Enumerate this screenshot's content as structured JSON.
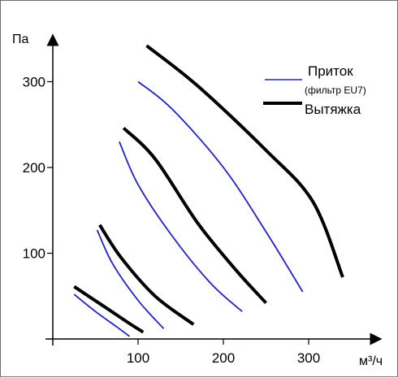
{
  "chart_data": {
    "type": "line",
    "title": "",
    "xlabel": "м³/ч",
    "ylabel": "Па",
    "xlim": [
      0,
      380
    ],
    "ylim": [
      0,
      380
    ],
    "x_ticks": [
      100,
      200,
      300
    ],
    "y_ticks": [
      100,
      200,
      300
    ],
    "grid": false,
    "legend": {
      "placement": "top-right",
      "entries": [
        {
          "name": "Приток",
          "note": "(фильтр EU7)",
          "color": "#1f1fd6"
        },
        {
          "name": "Вытяжка",
          "note": "",
          "color": "#000000"
        }
      ]
    },
    "series": [
      {
        "name": "Приток",
        "color": "#1f1fd6",
        "x": [
          25,
          50,
          75,
          90
        ],
        "y": [
          52,
          32,
          14,
          3
        ]
      },
      {
        "name": "Приток",
        "color": "#1f1fd6",
        "x": [
          52,
          70,
          100,
          130
        ],
        "y": [
          127,
          88,
          45,
          12
        ]
      },
      {
        "name": "Приток",
        "color": "#1f1fd6",
        "x": [
          78,
          100,
          140,
          185,
          222
        ],
        "y": [
          230,
          180,
          120,
          65,
          32
        ]
      },
      {
        "name": "Приток",
        "color": "#1f1fd6",
        "x": [
          100,
          140,
          200,
          250,
          293
        ],
        "y": [
          300,
          268,
          200,
          125,
          55
        ]
      },
      {
        "name": "Вытяжка",
        "color": "#000000",
        "x": [
          25,
          60,
          90,
          106
        ],
        "y": [
          61,
          38,
          18,
          8
        ]
      },
      {
        "name": "Вытяжка",
        "color": "#000000",
        "x": [
          55,
          80,
          120,
          165
        ],
        "y": [
          133,
          95,
          50,
          17
        ]
      },
      {
        "name": "Вытяжка",
        "color": "#000000",
        "x": [
          83,
          120,
          170,
          215,
          250
        ],
        "y": [
          246,
          210,
          135,
          80,
          42
        ]
      },
      {
        "name": "Вытяжка",
        "color": "#000000",
        "x": [
          110,
          170,
          250,
          305,
          340
        ],
        "y": [
          342,
          295,
          220,
          160,
          72
        ]
      }
    ]
  }
}
